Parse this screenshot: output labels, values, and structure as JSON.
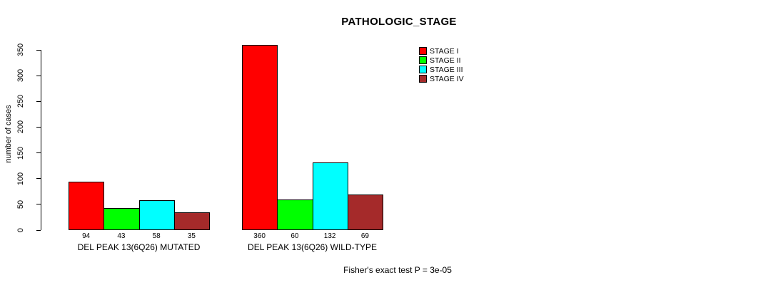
{
  "chart_data": {
    "type": "bar",
    "title": "PATHOLOGIC_STAGE",
    "ylabel": "number of cases",
    "xlabel": "",
    "categories": [
      "DEL PEAK 13(6Q26) MUTATED",
      "DEL PEAK 13(6Q26) WILD-TYPE"
    ],
    "series": [
      {
        "name": "STAGE I",
        "color": "#FF0000",
        "values": [
          94,
          360
        ]
      },
      {
        "name": "STAGE II",
        "color": "#00FF00",
        "values": [
          43,
          60
        ]
      },
      {
        "name": "STAGE III",
        "color": "#00FFFF",
        "values": [
          58,
          132
        ]
      },
      {
        "name": "STAGE IV",
        "color": "#A52A2A",
        "values": [
          35,
          69
        ]
      }
    ],
    "ylim": [
      0,
      350
    ],
    "yticks": [
      0,
      50,
      100,
      150,
      200,
      250,
      300,
      350
    ],
    "grid": false,
    "bar_value_labels": true,
    "legend_position": "top-right",
    "annotation": "Fisher's exact test P = 3e-05",
    "bar_border_color": "#000000",
    "text_color": "#000000",
    "background_color": "#FFFFFF"
  }
}
